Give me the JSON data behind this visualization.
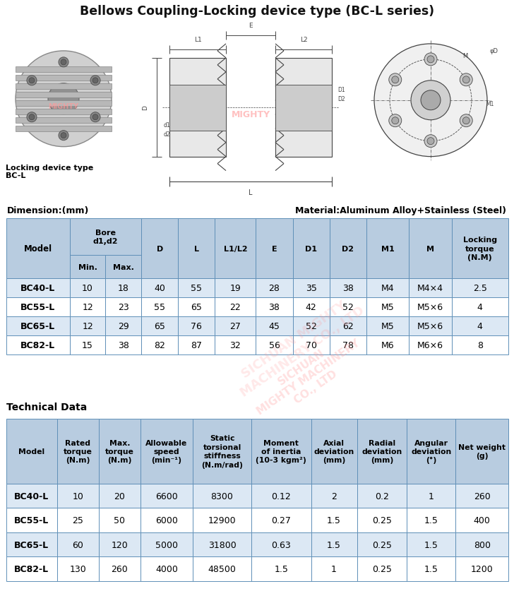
{
  "title": "Bellows Coupling-Locking device type (BC-L series)",
  "title_bg": "#ccd9e8",
  "dim_label": "Dimension:(mm)",
  "material_label": "Material:Aluminum Alloy+Stainless (Steel)",
  "tech_label": "Technical Data",
  "locking_text": "Locking device type\nBC-L",
  "dim_table": {
    "rows": [
      [
        "BC40-L",
        "10",
        "18",
        "40",
        "55",
        "19",
        "28",
        "35",
        "38",
        "M4",
        "M4×4",
        "2.5"
      ],
      [
        "BC55-L",
        "12",
        "23",
        "55",
        "65",
        "22",
        "38",
        "42",
        "52",
        "M5",
        "M5×6",
        "4"
      ],
      [
        "BC65-L",
        "12",
        "29",
        "65",
        "76",
        "27",
        "45",
        "52",
        "62",
        "M5",
        "M5×6",
        "4"
      ],
      [
        "BC82-L",
        "15",
        "38",
        "82",
        "87",
        "32",
        "56",
        "70",
        "78",
        "M6",
        "M6×6",
        "8"
      ]
    ]
  },
  "tech_table": {
    "col_headers": [
      "Model",
      "Rated\ntorque\n(N.m)",
      "Max.\ntorque\n(N.m)",
      "Allowable\nspeed\n(min⁻¹)",
      "Static\ntorsional\nstiffness\n(N.m/rad)",
      "Moment\nof inertia\n(10-3 kgm²)",
      "Axial\ndeviation\n(mm)",
      "Radial\ndeviation\n(mm)",
      "Angular\ndeviation\n(°)",
      "Net weight\n(g)"
    ],
    "rows": [
      [
        "BC40-L",
        "10",
        "20",
        "6600",
        "8300",
        "0.12",
        "2",
        "0.2",
        "1",
        "260"
      ],
      [
        "BC55-L",
        "25",
        "50",
        "6000",
        "12900",
        "0.27",
        "1.5",
        "0.25",
        "1.5",
        "400"
      ],
      [
        "BC65-L",
        "60",
        "120",
        "5000",
        "31800",
        "0.63",
        "1.5",
        "0.25",
        "1.5",
        "800"
      ],
      [
        "BC82-L",
        "130",
        "260",
        "4000",
        "48500",
        "1.5",
        "1",
        "0.25",
        "1.5",
        "1200"
      ]
    ]
  },
  "header_bg": "#b8cce0",
  "row_bg": "#dce8f4",
  "border_color": "#6090b8",
  "line_color": "#555555",
  "watermark_color": "#ff9999"
}
